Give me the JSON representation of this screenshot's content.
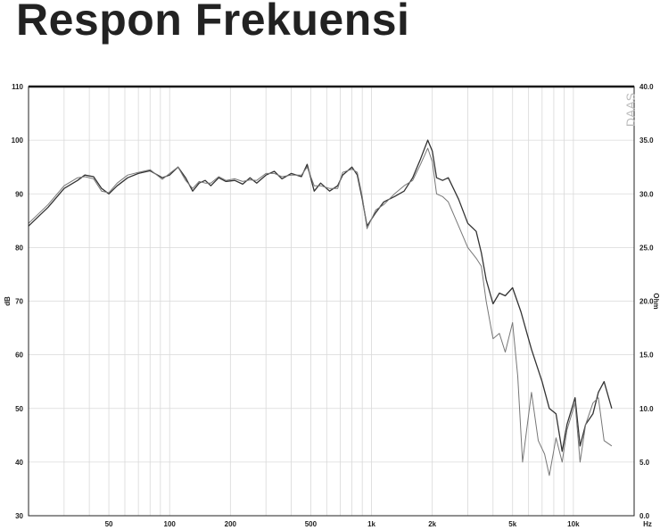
{
  "title": "Respon Frekuensi",
  "watermark": "DAAS",
  "chart_data": {
    "type": "line",
    "title": "Respon Frekuensi",
    "xlabel": "Hz",
    "ylabel": "dB",
    "y2label": "Ohm",
    "x_scale": "log",
    "xlim": [
      20,
      20000
    ],
    "ylim": [
      30,
      110
    ],
    "y2lim": [
      0,
      40
    ],
    "grid": true,
    "x_tick_labels": [
      {
        "value": 50,
        "label": "50"
      },
      {
        "value": 100,
        "label": "100"
      },
      {
        "value": 200,
        "label": "200"
      },
      {
        "value": 500,
        "label": "500"
      },
      {
        "value": 1000,
        "label": "1k"
      },
      {
        "value": 2000,
        "label": "2k"
      },
      {
        "value": 5000,
        "label": "5k"
      },
      {
        "value": 10000,
        "label": "10k"
      }
    ],
    "y_ticks": [
      30,
      40,
      50,
      60,
      70,
      80,
      90,
      100,
      110
    ],
    "y2_tick_labels": [
      "0.0",
      "5.0",
      "10.0",
      "15.0",
      "20.0",
      "25.0",
      "30.0",
      "35.0",
      "40.0"
    ],
    "series": [
      {
        "color": "#333333",
        "points": [
          [
            20,
            84
          ],
          [
            25,
            87.5
          ],
          [
            30,
            91
          ],
          [
            35,
            92.5
          ],
          [
            38,
            93.5
          ],
          [
            42,
            93.2
          ],
          [
            46,
            91
          ],
          [
            50,
            90
          ],
          [
            55,
            91.5
          ],
          [
            62,
            93
          ],
          [
            70,
            93.8
          ],
          [
            80,
            94.3
          ],
          [
            92,
            93
          ],
          [
            100,
            93.5
          ],
          [
            110,
            95
          ],
          [
            120,
            93
          ],
          [
            130,
            90.5
          ],
          [
            140,
            92
          ],
          [
            150,
            92.5
          ],
          [
            160,
            91.5
          ],
          [
            175,
            93
          ],
          [
            190,
            92.3
          ],
          [
            210,
            92.5
          ],
          [
            230,
            91.8
          ],
          [
            250,
            93
          ],
          [
            270,
            92
          ],
          [
            300,
            93.5
          ],
          [
            330,
            94.2
          ],
          [
            360,
            92.8
          ],
          [
            400,
            93.8
          ],
          [
            450,
            93.2
          ],
          [
            480,
            95.5
          ],
          [
            520,
            90.5
          ],
          [
            560,
            92
          ],
          [
            620,
            90.5
          ],
          [
            680,
            91.5
          ],
          [
            720,
            93.5
          ],
          [
            800,
            95
          ],
          [
            850,
            93.5
          ],
          [
            900,
            89
          ],
          [
            950,
            84
          ],
          [
            1050,
            86.5
          ],
          [
            1150,
            88.5
          ],
          [
            1300,
            89.5
          ],
          [
            1450,
            90.5
          ],
          [
            1600,
            93
          ],
          [
            1750,
            96.5
          ],
          [
            1900,
            100
          ],
          [
            2000,
            98
          ],
          [
            2100,
            93
          ],
          [
            2250,
            92.5
          ],
          [
            2400,
            93
          ],
          [
            2700,
            89
          ],
          [
            3000,
            84.5
          ],
          [
            3300,
            83
          ],
          [
            3500,
            79
          ],
          [
            3700,
            74
          ],
          [
            4000,
            69.5
          ],
          [
            4300,
            71.5
          ],
          [
            4600,
            71
          ],
          [
            5000,
            72.5
          ],
          [
            5500,
            68
          ],
          [
            6200,
            61
          ],
          [
            7000,
            55
          ],
          [
            7600,
            50
          ],
          [
            8200,
            49
          ],
          [
            8800,
            42
          ],
          [
            9300,
            47
          ],
          [
            10200,
            52
          ],
          [
            10800,
            43
          ],
          [
            11500,
            47
          ],
          [
            12500,
            49
          ],
          [
            13300,
            53
          ],
          [
            14200,
            55
          ],
          [
            15500,
            50
          ]
        ]
      },
      {
        "color": "#777777",
        "points": [
          [
            20,
            84.5
          ],
          [
            25,
            88
          ],
          [
            30,
            91.5
          ],
          [
            35,
            93
          ],
          [
            38,
            93.2
          ],
          [
            42,
            92.8
          ],
          [
            46,
            90.5
          ],
          [
            50,
            90.2
          ],
          [
            55,
            92
          ],
          [
            62,
            93.5
          ],
          [
            70,
            94
          ],
          [
            80,
            94.5
          ],
          [
            92,
            92.7
          ],
          [
            100,
            93.8
          ],
          [
            110,
            95
          ],
          [
            120,
            92.5
          ],
          [
            130,
            91
          ],
          [
            140,
            92.3
          ],
          [
            150,
            92
          ],
          [
            160,
            92
          ],
          [
            175,
            93.2
          ],
          [
            190,
            92.5
          ],
          [
            210,
            92.8
          ],
          [
            230,
            92.3
          ],
          [
            250,
            92.6
          ],
          [
            270,
            92.5
          ],
          [
            300,
            93.8
          ],
          [
            330,
            93.8
          ],
          [
            360,
            93.2
          ],
          [
            400,
            93.5
          ],
          [
            450,
            93.5
          ],
          [
            480,
            95
          ],
          [
            520,
            91.5
          ],
          [
            560,
            91.5
          ],
          [
            620,
            91
          ],
          [
            680,
            91
          ],
          [
            720,
            94
          ],
          [
            800,
            94.6
          ],
          [
            850,
            94
          ],
          [
            900,
            89.5
          ],
          [
            950,
            83.5
          ],
          [
            1050,
            87
          ],
          [
            1150,
            88
          ],
          [
            1300,
            90
          ],
          [
            1450,
            91.5
          ],
          [
            1600,
            92.5
          ],
          [
            1750,
            95.5
          ],
          [
            1900,
            98.5
          ],
          [
            2000,
            96
          ],
          [
            2100,
            90
          ],
          [
            2250,
            89.5
          ],
          [
            2400,
            88.5
          ],
          [
            2700,
            84
          ],
          [
            3000,
            80
          ],
          [
            3300,
            78
          ],
          [
            3500,
            76.5
          ],
          [
            3700,
            70
          ],
          [
            4000,
            63
          ],
          [
            4300,
            64
          ],
          [
            4600,
            60.5
          ],
          [
            5000,
            66
          ],
          [
            5300,
            56
          ],
          [
            5600,
            40
          ],
          [
            6200,
            53
          ],
          [
            6700,
            44
          ],
          [
            7200,
            41.5
          ],
          [
            7600,
            37.5
          ],
          [
            8200,
            44.5
          ],
          [
            8800,
            40
          ],
          [
            9300,
            46
          ],
          [
            10200,
            51
          ],
          [
            10800,
            40
          ],
          [
            11500,
            47
          ],
          [
            12500,
            51
          ],
          [
            13300,
            52
          ],
          [
            14200,
            44
          ],
          [
            15500,
            43
          ]
        ]
      }
    ]
  }
}
